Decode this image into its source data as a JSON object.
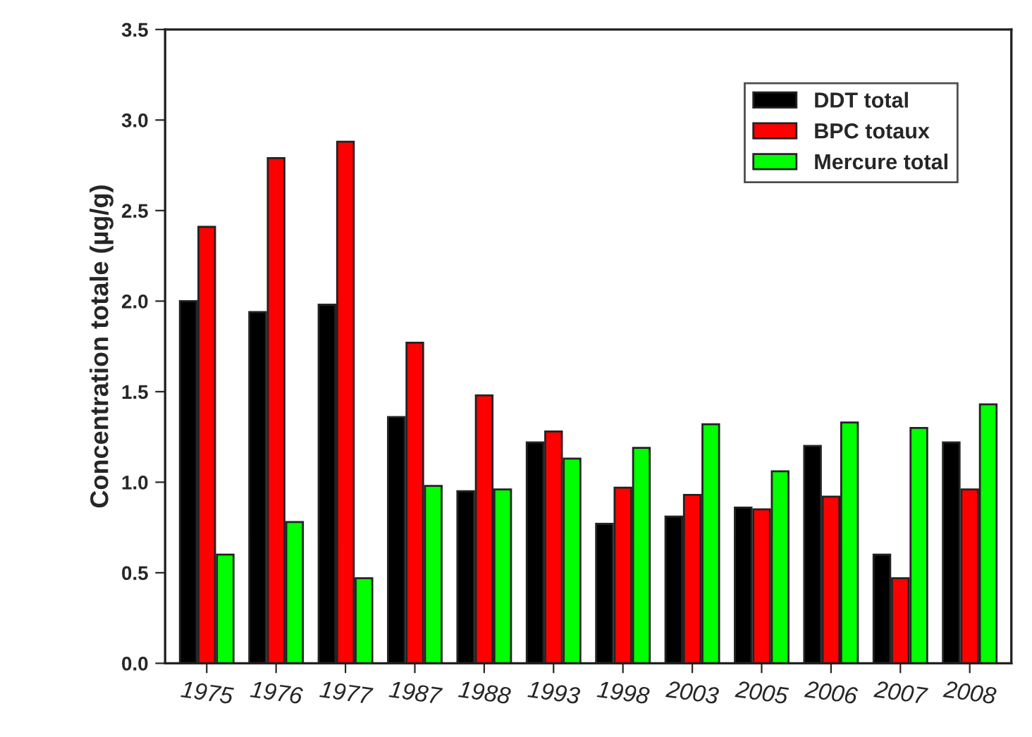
{
  "chart_data": {
    "type": "bar",
    "ylabel": "Concentration totale (µg/g)",
    "categories": [
      "1975",
      "1976",
      "1977",
      "1987",
      "1988",
      "1993",
      "1998",
      "2003",
      "2005",
      "2006",
      "2007",
      "2008"
    ],
    "series": [
      {
        "name": "DDT total",
        "color": "#000000",
        "values": [
          2.0,
          1.94,
          1.98,
          1.36,
          0.95,
          1.22,
          0.77,
          0.81,
          0.86,
          1.2,
          0.6,
          1.22
        ]
      },
      {
        "name": "BPC totaux",
        "color": "#ff0000",
        "values": [
          2.41,
          2.79,
          2.88,
          1.77,
          1.48,
          1.28,
          0.97,
          0.93,
          0.85,
          0.92,
          0.47,
          0.96
        ]
      },
      {
        "name": "Mercure total",
        "color": "#00ff00",
        "values": [
          0.6,
          0.78,
          0.47,
          0.98,
          0.96,
          1.13,
          1.19,
          1.32,
          1.06,
          1.33,
          1.3,
          1.43
        ]
      }
    ],
    "ylim": [
      0,
      3.5
    ],
    "yticks": [
      {
        "value": 0,
        "label": "0.0"
      },
      0.5,
      {
        "value": 1,
        "label": "1.0"
      },
      1.5,
      {
        "value": 2,
        "label": "2.0"
      },
      2.5,
      {
        "value": 3,
        "label": "3.0"
      },
      3.5
    ],
    "grid": false,
    "legend": "top right"
  }
}
